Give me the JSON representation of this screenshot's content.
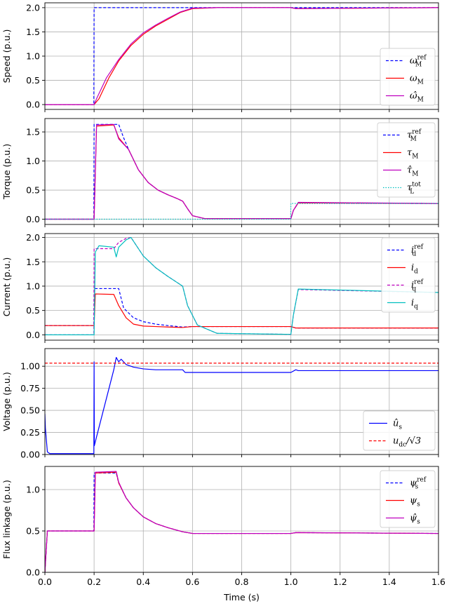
{
  "chart_data": [
    {
      "type": "line",
      "ylabel": "Speed (p.u.)",
      "xlim": [
        0,
        1.6
      ],
      "ylim": [
        -0.1,
        2.1
      ],
      "yticks": [
        "0.0",
        "0.5",
        "1.0",
        "1.5",
        "2.0"
      ],
      "legend_position": "lower-right",
      "grid": true,
      "series": [
        {
          "name": "ω_M^ref",
          "color": "#0000ff",
          "dash": "dashed",
          "x": [
            0,
            0.199,
            0.2,
            1.6
          ],
          "y": [
            0,
            0,
            2.0,
            2.0
          ]
        },
        {
          "name": "ω_M",
          "color": "#ff0000",
          "dash": "solid",
          "x": [
            0,
            0.2,
            0.22,
            0.26,
            0.3,
            0.35,
            0.4,
            0.45,
            0.5,
            0.55,
            0.6,
            0.7,
            1.0,
            1.02,
            1.6
          ],
          "y": [
            0,
            0,
            0.12,
            0.55,
            0.9,
            1.22,
            1.45,
            1.62,
            1.76,
            1.9,
            1.98,
            2.0,
            2.0,
            1.98,
            2.0
          ]
        },
        {
          "name": "ω̂_M",
          "color": "#bf00bf",
          "dash": "solid",
          "x": [
            0,
            0.2,
            0.21,
            0.25,
            0.3,
            0.35,
            0.4,
            0.45,
            0.5,
            0.55,
            0.6,
            0.7,
            1.0,
            1.02,
            1.6
          ],
          "y": [
            0,
            0,
            0.12,
            0.55,
            0.93,
            1.25,
            1.48,
            1.64,
            1.78,
            1.91,
            1.99,
            2.0,
            2.0,
            1.98,
            2.0
          ]
        }
      ]
    },
    {
      "type": "line",
      "ylabel": "Torque (p.u.)",
      "xlim": [
        0,
        1.6
      ],
      "ylim": [
        -0.09,
        1.73
      ],
      "yticks": [
        "0.0",
        "0.5",
        "1.0",
        "1.5"
      ],
      "legend_position": "upper-right",
      "grid": true,
      "series": [
        {
          "name": "τ_M^ref",
          "color": "#0000ff",
          "dash": "dashed",
          "x": [
            0,
            0.199,
            0.2,
            0.3,
            0.32,
            0.34,
            0.38,
            0.42,
            0.46,
            0.5,
            0.54,
            0.56,
            0.58,
            0.6,
            0.65,
            1.0,
            1.01,
            1.03,
            1.6
          ],
          "y": [
            0,
            0,
            1.63,
            1.63,
            1.4,
            1.2,
            0.85,
            0.63,
            0.5,
            0.42,
            0.35,
            0.31,
            0.18,
            0.06,
            0.01,
            0.01,
            0.15,
            0.28,
            0.27
          ]
        },
        {
          "name": "τ_M",
          "color": "#ff0000",
          "dash": "solid",
          "x": [
            0,
            0.2,
            0.21,
            0.28,
            0.3,
            0.34,
            0.38,
            0.42,
            0.46,
            0.5,
            0.54,
            0.56,
            0.58,
            0.6,
            0.65,
            1.0,
            1.01,
            1.03,
            1.6
          ],
          "y": [
            0,
            0,
            1.6,
            1.62,
            1.4,
            1.2,
            0.85,
            0.63,
            0.5,
            0.42,
            0.35,
            0.31,
            0.18,
            0.06,
            0.01,
            0.01,
            0.15,
            0.28,
            0.27
          ]
        },
        {
          "name": "τ̂_M",
          "color": "#bf00bf",
          "dash": "solid",
          "x": [
            0,
            0.2,
            0.21,
            0.28,
            0.3,
            0.34,
            0.38,
            0.42,
            0.46,
            0.5,
            0.54,
            0.56,
            0.58,
            0.6,
            0.65,
            1.0,
            1.01,
            1.03,
            1.6
          ],
          "y": [
            0,
            0,
            1.62,
            1.63,
            1.38,
            1.2,
            0.85,
            0.63,
            0.5,
            0.42,
            0.35,
            0.31,
            0.18,
            0.06,
            0.01,
            0.01,
            0.15,
            0.29,
            0.27
          ]
        },
        {
          "name": "τ_L^tot",
          "color": "#00bfbf",
          "dash": "dotted",
          "x": [
            0,
            0.999,
            1.0,
            1.6
          ],
          "y": [
            0,
            0,
            0.27,
            0.27
          ]
        }
      ]
    },
    {
      "type": "line",
      "ylabel": "Current (p.u.)",
      "xlim": [
        0,
        1.6
      ],
      "ylim": [
        -0.11,
        2.08
      ],
      "yticks": [
        "0.0",
        "0.5",
        "1.0",
        "1.5",
        "2.0"
      ],
      "legend_position": "upper-right",
      "grid": true,
      "series": [
        {
          "name": "i_d^ref",
          "color": "#0000ff",
          "dash": "dashed",
          "x": [
            0,
            0.199,
            0.2,
            0.3,
            0.32,
            0.36,
            0.4,
            0.45,
            0.5,
            0.56,
            0.6,
            1.0,
            1.02,
            1.6
          ],
          "y": [
            0.19,
            0.19,
            0.95,
            0.95,
            0.55,
            0.35,
            0.27,
            0.22,
            0.19,
            0.16,
            0.17,
            0.17,
            0.14,
            0.14
          ]
        },
        {
          "name": "i_d",
          "color": "#ff0000",
          "dash": "solid",
          "x": [
            0,
            0.2,
            0.205,
            0.28,
            0.3,
            0.33,
            0.36,
            0.4,
            0.45,
            0.5,
            0.56,
            0.6,
            1.0,
            1.02,
            1.6
          ],
          "y": [
            0.19,
            0.19,
            0.84,
            0.83,
            0.6,
            0.35,
            0.22,
            0.18,
            0.17,
            0.16,
            0.15,
            0.17,
            0.17,
            0.14,
            0.14
          ]
        },
        {
          "name": "i_q^ref",
          "color": "#bf00bf",
          "dash": "dashed",
          "x": [
            0,
            0.199,
            0.2,
            0.28,
            0.3,
            0.33,
            0.35,
            0.4,
            0.45,
            0.5,
            0.56,
            0.58,
            0.62,
            0.7,
            1.0,
            1.01,
            1.03,
            1.6
          ],
          "y": [
            0,
            0,
            1.77,
            1.77,
            1.9,
            1.98,
            2.0,
            1.62,
            1.38,
            1.2,
            1.0,
            0.6,
            0.2,
            0.03,
            0.01,
            0.4,
            0.93,
            0.87
          ]
        },
        {
          "name": "i_q",
          "color": "#00bfbf",
          "dash": "solid",
          "x": [
            0,
            0.2,
            0.205,
            0.22,
            0.28,
            0.29,
            0.3,
            0.33,
            0.35,
            0.4,
            0.45,
            0.5,
            0.56,
            0.58,
            0.62,
            0.7,
            1.0,
            1.01,
            1.03,
            1.6
          ],
          "y": [
            0,
            0,
            1.7,
            1.83,
            1.8,
            1.6,
            1.8,
            1.95,
            2.0,
            1.62,
            1.38,
            1.2,
            1.0,
            0.6,
            0.2,
            0.03,
            0.01,
            0.4,
            0.94,
            0.87
          ]
        }
      ]
    },
    {
      "type": "line",
      "ylabel": "Voltage (p.u.)",
      "xlim": [
        0,
        1.6
      ],
      "ylim": [
        0,
        1.2
      ],
      "yticks": [
        "0.00",
        "0.25",
        "0.50",
        "0.75",
        "1.00"
      ],
      "legend_position": "lower-right",
      "grid": true,
      "series": [
        {
          "name": "û_s",
          "color": "#0000ff",
          "dash": "solid",
          "x": [
            0,
            0.002,
            0.01,
            0.02,
            0.199,
            0.2,
            0.201,
            0.21,
            0.28,
            0.29,
            0.3,
            0.31,
            0.33,
            0.36,
            0.4,
            0.45,
            0.5,
            0.56,
            0.57,
            1.0,
            1.02,
            1.03,
            1.6
          ],
          "y": [
            0.46,
            0.3,
            0.03,
            0.01,
            0.01,
            1.05,
            0.1,
            0.2,
            0.96,
            1.1,
            1.05,
            1.08,
            1.02,
            0.99,
            0.97,
            0.96,
            0.96,
            0.96,
            0.93,
            0.93,
            0.96,
            0.95,
            0.95
          ]
        },
        {
          "name": "u_dc/√3",
          "color": "#ff0000",
          "dash": "dashed",
          "x": [
            0,
            1.6
          ],
          "y": [
            1.035,
            1.035
          ]
        }
      ]
    },
    {
      "type": "line",
      "ylabel": "Flux linkage (p.u.)",
      "xlabel": "Time (s)",
      "xlim": [
        0,
        1.6
      ],
      "xticks": [
        "0.0",
        "0.2",
        "0.4",
        "0.6",
        "0.8",
        "1.0",
        "1.2",
        "1.4",
        "1.6"
      ],
      "ylim": [
        0,
        1.28
      ],
      "yticks": [
        "0.0",
        "0.5",
        "1.0"
      ],
      "legend_position": "upper-right",
      "grid": true,
      "series": [
        {
          "name": "ψ_s^ref",
          "color": "#0000ff",
          "dash": "dashed",
          "x": [
            0,
            0.01,
            0.199,
            0.2,
            0.29,
            0.3,
            0.33,
            0.36,
            0.4,
            0.45,
            0.5,
            0.56,
            0.6,
            1.0,
            1.02,
            1.6
          ],
          "y": [
            0,
            0.5,
            0.5,
            1.2,
            1.2,
            1.08,
            0.9,
            0.78,
            0.67,
            0.59,
            0.54,
            0.49,
            0.47,
            0.47,
            0.48,
            0.47
          ]
        },
        {
          "name": "ψ_s",
          "color": "#ff0000",
          "dash": "solid",
          "x": [
            0,
            0.01,
            0.2,
            0.205,
            0.29,
            0.3,
            0.33,
            0.36,
            0.4,
            0.45,
            0.5,
            0.56,
            0.6,
            1.0,
            1.02,
            1.6
          ],
          "y": [
            0,
            0.5,
            0.5,
            1.2,
            1.21,
            1.08,
            0.9,
            0.78,
            0.67,
            0.59,
            0.54,
            0.49,
            0.47,
            0.47,
            0.48,
            0.47
          ]
        },
        {
          "name": "ψ̂_s",
          "color": "#bf00bf",
          "dash": "solid",
          "x": [
            0,
            0.01,
            0.2,
            0.205,
            0.29,
            0.3,
            0.33,
            0.36,
            0.4,
            0.45,
            0.5,
            0.56,
            0.6,
            1.0,
            1.02,
            1.6
          ],
          "y": [
            0,
            0.5,
            0.5,
            1.21,
            1.22,
            1.09,
            0.9,
            0.78,
            0.67,
            0.59,
            0.54,
            0.49,
            0.47,
            0.47,
            0.48,
            0.47
          ]
        }
      ]
    }
  ],
  "legends": [
    [
      {
        "base": "ω",
        "sub": "M",
        "sup": "ref"
      },
      {
        "base": "ω",
        "sub": "M",
        "sup": ""
      },
      {
        "base": "ω̂",
        "sub": "M",
        "sup": ""
      }
    ],
    [
      {
        "base": "τ",
        "sub": "M",
        "sup": "ref"
      },
      {
        "base": "τ",
        "sub": "M",
        "sup": ""
      },
      {
        "base": "τ̂",
        "sub": "M",
        "sup": ""
      },
      {
        "base": "τ",
        "sub": "L",
        "sup": "tot"
      }
    ],
    [
      {
        "base": "i",
        "sub": "d",
        "sup": "ref"
      },
      {
        "base": "i",
        "sub": "d",
        "sup": ""
      },
      {
        "base": "i",
        "sub": "q",
        "sup": "ref"
      },
      {
        "base": "i",
        "sub": "q",
        "sup": ""
      }
    ],
    [
      {
        "base": "û",
        "sub": "s",
        "sup": ""
      },
      {
        "base": "u",
        "sub": "dc",
        "sup": "",
        "tail": "/√3"
      }
    ],
    [
      {
        "base": "ψ",
        "sub": "s",
        "sup": "ref"
      },
      {
        "base": "ψ",
        "sub": "s",
        "sup": ""
      },
      {
        "base": "ψ̂",
        "sub": "s",
        "sup": ""
      }
    ]
  ]
}
